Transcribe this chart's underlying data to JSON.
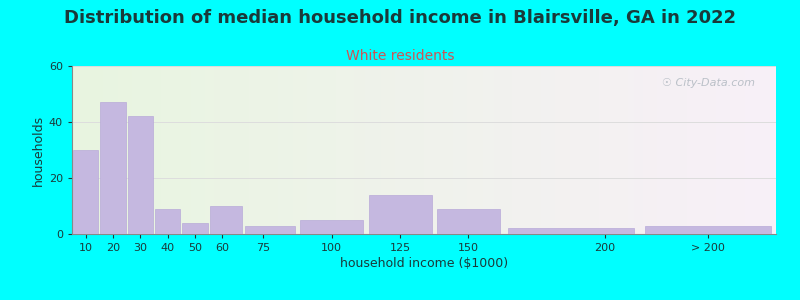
{
  "title": "Distribution of median household income in Blairsville, GA in 2022",
  "subtitle": "White residents",
  "xlabel": "household income ($1000)",
  "ylabel": "households",
  "background_color": "#00FFFF",
  "bar_color": "#c5b8e0",
  "bar_edge_color": "#b8aad8",
  "title_color": "#1a3a3a",
  "subtitle_color": "#cc5555",
  "axis_label_color": "#1a3a3a",
  "tick_color": "#1a3a3a",
  "grid_color": "#dddddd",
  "watermark_text": "☉ City-Data.com",
  "title_fontsize": 13,
  "subtitle_fontsize": 10,
  "axis_label_fontsize": 9,
  "tick_fontsize": 8,
  "ylim": [
    0,
    60
  ],
  "yticks": [
    0,
    20,
    40,
    60
  ],
  "bin_edges": [
    5,
    15,
    25,
    35,
    45,
    55,
    67.5,
    87.5,
    112.5,
    137.5,
    162.5,
    212.5,
    262.5
  ],
  "xtick_positions": [
    10,
    20,
    30,
    40,
    50,
    60,
    75,
    100,
    125,
    150,
    200,
    237.5
  ],
  "xtick_labels": [
    "10",
    "20",
    "30",
    "40",
    "50",
    "60",
    "75",
    "100",
    "125",
    "150",
    "200",
    "> 200"
  ],
  "values": [
    30,
    47,
    42,
    9,
    4,
    10,
    3,
    5,
    14,
    9,
    2,
    3
  ],
  "xmin": 5,
  "xmax": 262.5
}
